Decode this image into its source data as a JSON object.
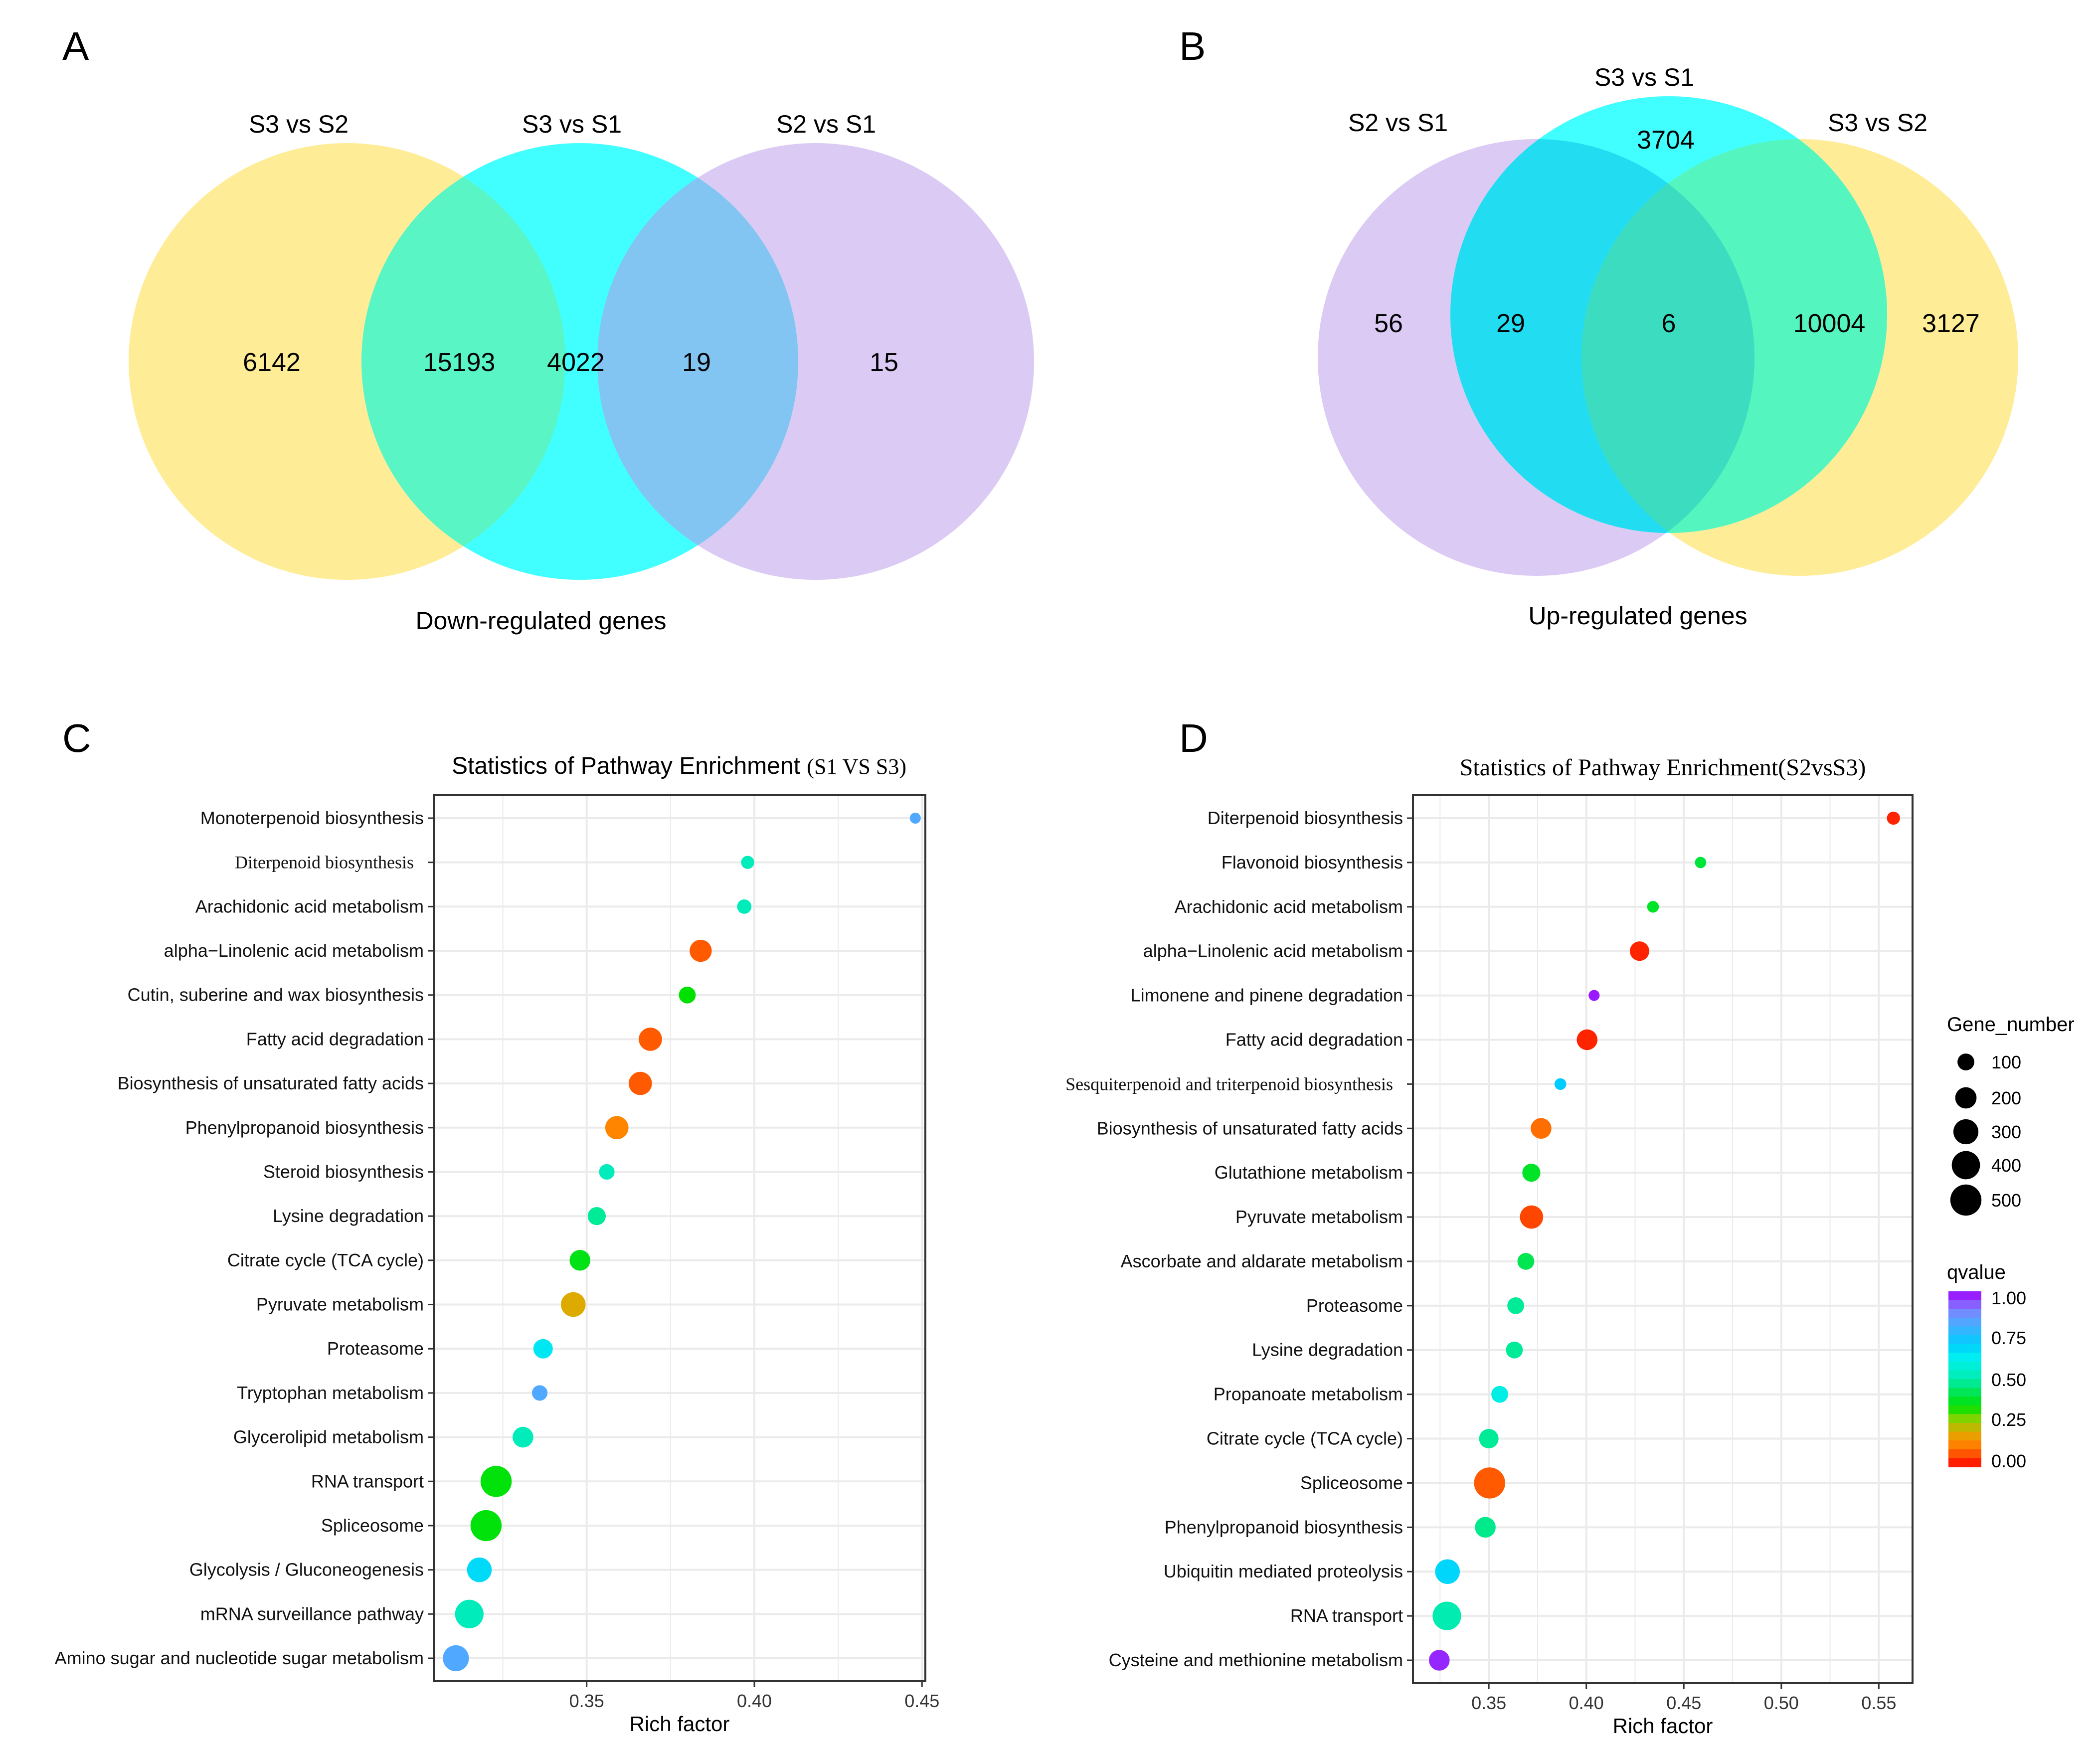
{
  "panels": {
    "a": "A",
    "b": "B",
    "c": "C",
    "d": "D"
  },
  "venn_down": {
    "sets": [
      "S3 vs S2",
      "S3 vs S1",
      "S2 vs S1"
    ],
    "colors": {
      "s3s2": "#FEEC96",
      "s3s1": "#42FFFF",
      "s2s1": "#DACAF4",
      "s3s2_s3s1": "#5AF5C5",
      "s3s1_s2s1": "#82C5F2"
    },
    "counts": [
      6142,
      15193,
      4022,
      19,
      15
    ],
    "caption": "Down-regulated genes"
  },
  "venn_up": {
    "sets": [
      "S2 vs S1",
      "S3 vs S1",
      "S3 vs S2"
    ],
    "colors": {
      "s2s1": "#DACAF4",
      "s3s1": "#42FFFF",
      "s3s2": "#FEEC96",
      "s2s1_s3s1": "#22DDF2",
      "s3s1_s3s2": "#55F5C0",
      "all": "#3CDCC0"
    },
    "counts": [
      3704,
      56,
      29,
      6,
      10004,
      3127
    ],
    "caption": "Up-regulated genes"
  },
  "chart_data": [
    {
      "type": "scatter",
      "title": "Statistics of Pathway Enrichment",
      "title_suffix": "(S1 VS S3)",
      "xlabel": "Rich factor",
      "ylabel": "",
      "xlim": [
        0.3044,
        0.451
      ],
      "xticks": [
        "0.35",
        "0.40",
        "0.45"
      ],
      "grid": true,
      "categories": [
        "Monoterpenoid biosynthesis",
        "Diterpenoid biosynthesis",
        "Arachidonic acid metabolism",
        "alpha−Linolenic acid metabolism",
        "Cutin, suberine and wax biosynthesis",
        "Fatty acid degradation",
        "Biosynthesis of unsaturated fatty acids",
        "Phenylpropanoid biosynthesis",
        "Steroid biosynthesis",
        "Lysine degradation",
        "Citrate cycle (TCA cycle)",
        "Pyruvate metabolism",
        "Proteasome",
        "Tryptophan metabolism",
        "Glycerolipid metabolism",
        "RNA transport",
        "Spliceosome",
        "Glycolysis / Gluconeogenesis",
        "mRNA surveillance pathway",
        "Amino sugar and nucleotide sugar metabolism"
      ],
      "x": [
        0.448,
        0.398,
        0.397,
        0.384,
        0.38,
        0.369,
        0.366,
        0.359,
        0.356,
        0.353,
        0.348,
        0.346,
        0.337,
        0.336,
        0.331,
        0.323,
        0.32,
        0.318,
        0.315,
        0.311
      ],
      "gene_number": [
        5,
        35,
        55,
        220,
        100,
        250,
        250,
        250,
        75,
        125,
        185,
        290,
        155,
        75,
        185,
        500,
        500,
        290,
        410,
        330
      ],
      "qvalue": [
        0.82,
        0.52,
        0.52,
        0.08,
        0.34,
        0.08,
        0.08,
        0.13,
        0.52,
        0.48,
        0.36,
        0.2,
        0.64,
        0.82,
        0.52,
        0.35,
        0.35,
        0.67,
        0.52,
        0.82
      ]
    },
    {
      "type": "scatter",
      "title": "Statistics of Pathway Enrichment(S2vsS3)",
      "xlabel": "Rich factor",
      "ylabel": "",
      "xlim": [
        0.3111,
        0.5673
      ],
      "xticks": [
        "0.35",
        "0.40",
        "0.45",
        "0.50",
        "0.55"
      ],
      "grid": true,
      "legend_position": "right",
      "categories": [
        "Diterpenoid biosynthesis",
        "Flavonoid biosynthesis",
        "Arachidonic acid metabolism",
        "alpha−Linolenic acid metabolism",
        "Limonene and pinene degradation",
        "Fatty acid degradation",
        "Sesquiterpenoid and triterpenoid biosynthesis",
        "Biosynthesis of unsaturated fatty acids",
        "Glutathione metabolism",
        "Pyruvate metabolism",
        "Ascorbate and aldarate metabolism",
        "Proteasome",
        "Lysine degradation",
        "Propanoate metabolism",
        "Citrate cycle (TCA cycle)",
        "Spliceosome",
        "Phenylpropanoid biosynthesis",
        "Ubiquitin mediated proteolysis",
        "RNA transport",
        "Cysteine and methionine metabolism"
      ],
      "x": [
        0.5575,
        0.4586,
        0.4342,
        0.4273,
        0.404,
        0.4004,
        0.3867,
        0.3768,
        0.3718,
        0.3719,
        0.369,
        0.3638,
        0.3631,
        0.3556,
        0.35,
        0.3504,
        0.3482,
        0.3288,
        0.3285,
        0.3246
      ],
      "gene_number": [
        35,
        10,
        15,
        155,
        5,
        185,
        15,
        185,
        125,
        250,
        100,
        100,
        100,
        100,
        155,
        500,
        185,
        290,
        410,
        185
      ],
      "qvalue": [
        0.03,
        0.4,
        0.38,
        0.03,
        0.98,
        0.03,
        0.7,
        0.1,
        0.38,
        0.06,
        0.42,
        0.48,
        0.48,
        0.6,
        0.48,
        0.08,
        0.47,
        0.68,
        0.5,
        0.97
      ],
      "size_legend": {
        "title": "Gene_number",
        "values": [
          "100",
          "200",
          "300",
          "400",
          "500"
        ]
      },
      "color_legend": {
        "title": "qvalue",
        "values": [
          "1.00",
          "0.75",
          "0.50",
          "0.25",
          "0.00"
        ],
        "range": [
          0,
          1
        ]
      }
    }
  ]
}
